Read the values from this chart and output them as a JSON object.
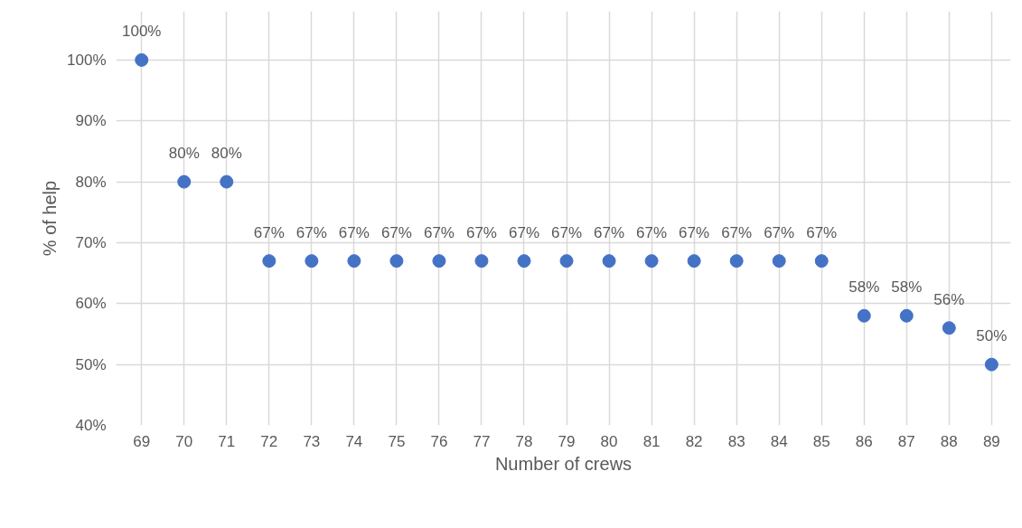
{
  "chart_data": {
    "type": "scatter",
    "xlabel": "Number of crews",
    "ylabel": "% of help",
    "x": [
      69,
      70,
      71,
      72,
      73,
      74,
      75,
      76,
      77,
      78,
      79,
      80,
      81,
      82,
      83,
      84,
      85,
      86,
      87,
      88,
      89
    ],
    "values": [
      100,
      80,
      80,
      67,
      67,
      67,
      67,
      67,
      67,
      67,
      67,
      67,
      67,
      67,
      67,
      67,
      67,
      58,
      58,
      56,
      50
    ],
    "value_labels": [
      "100%",
      "80%",
      "80%",
      "67%",
      "67%",
      "67%",
      "67%",
      "67%",
      "67%",
      "67%",
      "67%",
      "67%",
      "67%",
      "67%",
      "67%",
      "67%",
      "67%",
      "58%",
      "58%",
      "56%",
      "50%"
    ],
    "color": "#4472c4",
    "marker": "circle",
    "xlim": [
      68.4,
      89.45
    ],
    "xticks": [
      69,
      70,
      71,
      72,
      73,
      74,
      75,
      76,
      77,
      78,
      79,
      80,
      81,
      82,
      83,
      84,
      85,
      86,
      87,
      88,
      89
    ],
    "ylim": [
      40,
      108
    ],
    "yticks": [
      {
        "value": 40,
        "label": "40%"
      },
      {
        "value": 50,
        "label": "50%"
      },
      {
        "value": 60,
        "label": "60%"
      },
      {
        "value": 70,
        "label": "70%"
      },
      {
        "value": 80,
        "label": "80%"
      },
      {
        "value": 90,
        "label": "90%"
      },
      {
        "value": 100,
        "label": "100%"
      }
    ],
    "grid": true
  }
}
